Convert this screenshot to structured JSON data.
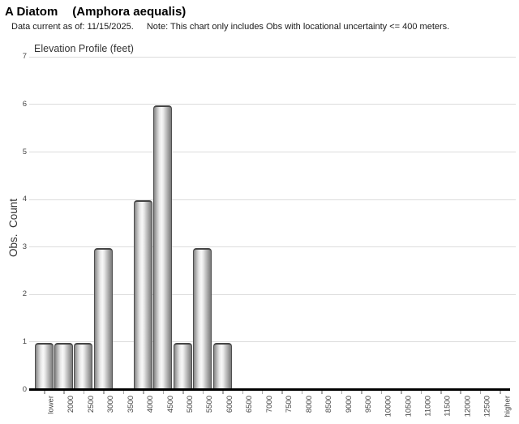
{
  "page": {
    "title_common": "A Diatom",
    "title_scientific": "(Amphora aequalis)",
    "subtitle_date": "Data current as of: 11/15/2025.",
    "subtitle_note": "Note: This chart only includes Obs with locational uncertainty <= 400 meters."
  },
  "chart_data": {
    "type": "bar",
    "title": "Elevation Profile (feet)",
    "xlabel": "",
    "ylabel": "Obs.  Count",
    "categories": [
      "lower",
      "2000",
      "2500",
      "3000",
      "3500",
      "4000",
      "4500",
      "5000",
      "5500",
      "6000",
      "6500",
      "7000",
      "7500",
      "8000",
      "8500",
      "9000",
      "9500",
      "10000",
      "10500",
      "11000",
      "11500",
      "12000",
      "12500",
      "higher"
    ],
    "values": [
      1,
      1,
      1,
      3,
      0,
      4,
      6,
      1,
      3,
      1,
      0,
      0,
      0,
      0,
      0,
      0,
      0,
      0,
      0,
      0,
      0,
      0,
      0,
      0
    ],
    "ylim": [
      0,
      7
    ],
    "yticks": [
      0,
      1,
      2,
      3,
      4,
      5,
      6,
      7
    ],
    "grid": "horizontal",
    "legend": "none",
    "colors": {
      "bar_highlight": "#f8f8f8",
      "bar_shade": "#7a7a7a",
      "bar_border": "#4f4f4f",
      "gridline": "#dcdcdc",
      "axis": "#000000",
      "tick_text": "#444444"
    }
  }
}
